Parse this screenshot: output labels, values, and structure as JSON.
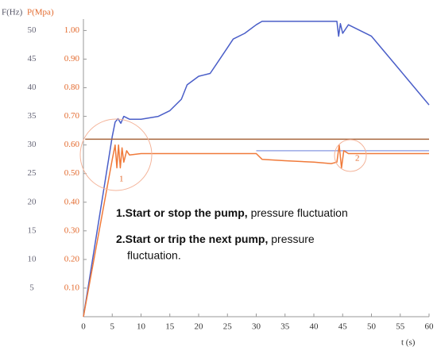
{
  "chart_data": {
    "type": "line",
    "y_label": "F(Hz)",
    "y2_label": "P(Mpa)",
    "x_label": "t (s)",
    "xlim": [
      0,
      60
    ],
    "xticks": [
      0,
      5,
      10,
      15,
      20,
      25,
      30,
      35,
      40,
      45,
      50,
      55,
      60
    ],
    "ylim": [
      0,
      52
    ],
    "yticks": [
      5,
      10,
      15,
      20,
      25,
      30,
      35,
      40,
      45,
      50
    ],
    "y2lim": [
      0,
      1.04
    ],
    "y2ticks": [
      {
        "value": 0.1,
        "label": "0.10"
      },
      {
        "value": 0.2,
        "label": "0.20"
      },
      {
        "value": 0.3,
        "label": "0.30"
      },
      {
        "value": 0.4,
        "label": "0.40"
      },
      {
        "value": 0.5,
        "label": "0.50"
      },
      {
        "value": 0.6,
        "label": "0.60"
      },
      {
        "value": 0.7,
        "label": "0.70"
      },
      {
        "value": 0.8,
        "label": "0.80"
      },
      {
        "value": 0.9,
        "label": "0.90"
      },
      {
        "value": 1,
        "label": "1.00"
      }
    ],
    "series": [
      {
        "color": "#4a5ec8",
        "x": [
          0,
          5,
          5.5,
          6,
          6.5,
          7,
          8,
          10,
          13,
          15,
          17,
          18,
          20,
          22,
          23,
          25,
          26,
          28,
          30,
          31,
          44,
          44.3,
          44.6,
          45,
          46,
          50,
          55,
          60
        ],
        "values": [
          0,
          31.5,
          34,
          34.6,
          33.8,
          35,
          34.5,
          34.5,
          35,
          36,
          38,
          40.5,
          42,
          42.5,
          44,
          47,
          48.5,
          49.5,
          51,
          51.6,
          51.6,
          49,
          51.2,
          49.5,
          51,
          49,
          43,
          37
        ]
      },
      {
        "color": "#9aa8e6",
        "axis": "y2",
        "x": [
          30,
          60
        ],
        "values": [
          0.58,
          0.58
        ]
      },
      {
        "color": "#a8663e",
        "axis": "y2",
        "x": [
          0.3,
          60
        ],
        "values": [
          0.62,
          0.62
        ]
      },
      {
        "color": "#f07a3a",
        "axis": "y2",
        "x": [
          0,
          5,
          5.5,
          5.8,
          6.1,
          6.4,
          6.7,
          7,
          7.5,
          8,
          10,
          30,
          31,
          35,
          40,
          43,
          44,
          44.4,
          44.8,
          45.2,
          46,
          60
        ],
        "values": [
          0,
          0.55,
          0.6,
          0.52,
          0.6,
          0.52,
          0.59,
          0.54,
          0.58,
          0.565,
          0.57,
          0.57,
          0.55,
          0.545,
          0.54,
          0.535,
          0.54,
          0.6,
          0.52,
          0.58,
          0.57,
          0.57
        ]
      }
    ],
    "annotations": [
      {
        "text": "1"
      },
      {
        "text": "2"
      },
      {
        "bold": "1.Start or stop the pump,",
        "normal": " pressure fluctuation"
      },
      {
        "bold": "2.Start or trip the next pump,",
        "normal": " pressure"
      },
      {
        "normal": "fluctuation."
      }
    ]
  }
}
